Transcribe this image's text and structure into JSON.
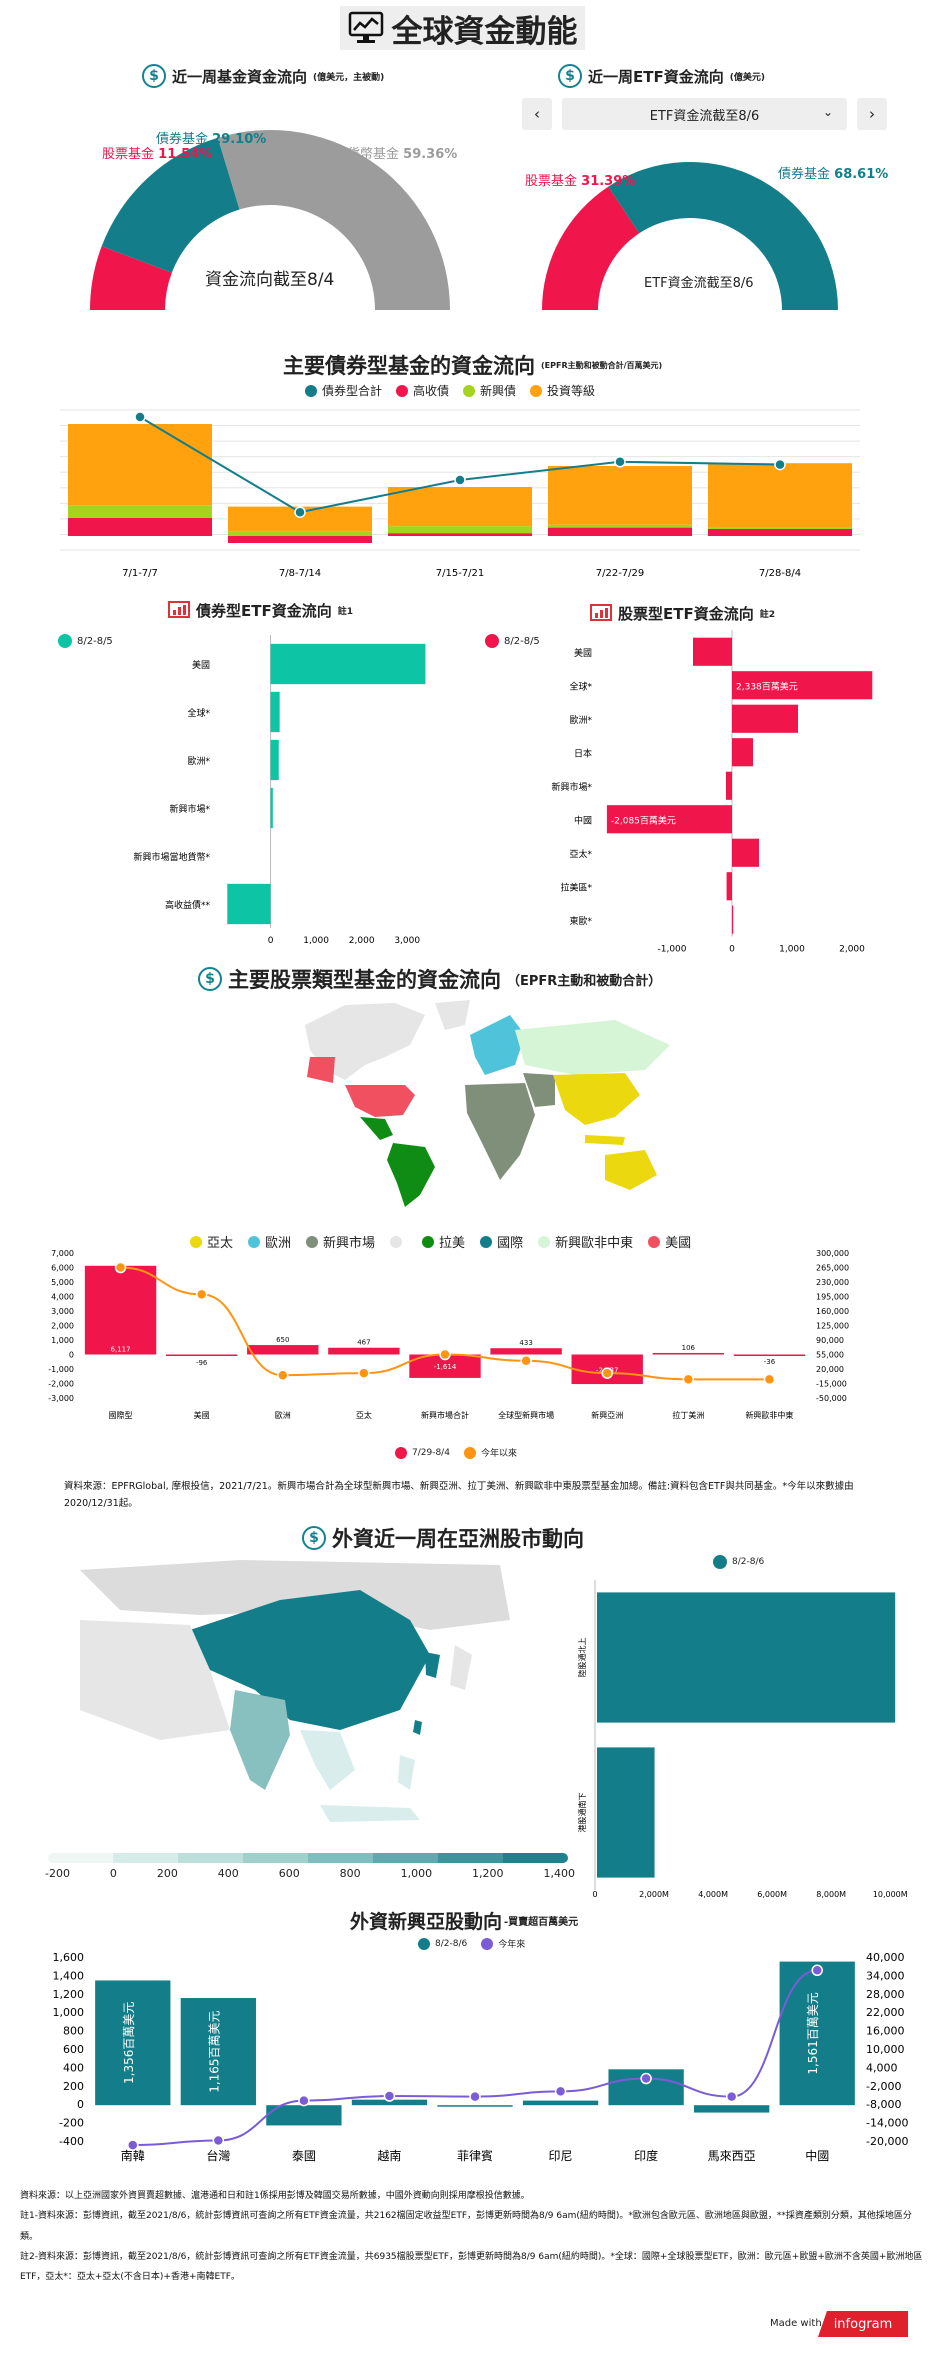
{
  "page_title": "全球資金動能",
  "gauge1": {
    "title": "近一周基金資金流向",
    "subtitle": "(億美元，主被動)",
    "center_label": "資金流向截至8/4",
    "slices": [
      {
        "label": "股票基金",
        "pct": "11.54%",
        "value": 11.54,
        "color": "#f0154a"
      },
      {
        "label": "債券基金",
        "pct": "29.10%",
        "value": 29.1,
        "color": "#137e8a"
      },
      {
        "label": "貨幣基金",
        "pct": "59.36%",
        "value": 59.36,
        "color": "#9c9c9c"
      }
    ]
  },
  "gauge2": {
    "title": "近一周ETF資金流向",
    "subtitle": "(億美元)",
    "dropdown_value": "ETF資金流截至8/6",
    "prev_icon": "chevron-left-icon",
    "next_icon": "chevron-right-icon",
    "center_label": "ETF資金流截至8/6",
    "slices": [
      {
        "label": "股票基金",
        "pct": "31.39%",
        "value": 31.39,
        "color": "#f0154a"
      },
      {
        "label": "債券基金",
        "pct": "68.61%",
        "value": 68.61,
        "color": "#137e8a"
      }
    ]
  },
  "bond_flow": {
    "title": "主要債券型基金的資金流向",
    "subtitle": "(EPFR主動和被動合計/百萬美元)",
    "legend": [
      {
        "label": "債券型合計",
        "color": "#137e8a"
      },
      {
        "label": "高收債",
        "color": "#f0154a"
      },
      {
        "label": "新興債",
        "color": "#a4d41e"
      },
      {
        "label": "投資等級",
        "color": "#ffa20e"
      }
    ],
    "chart_data": {
      "type": "bar",
      "categories": [
        "7/1-7/7",
        "7/8-7/14",
        "7/15-7/21",
        "7/22-7/29",
        "7/28-8/4"
      ],
      "series": [
        {
          "name": "高收債",
          "values": [
            13,
            -5,
            2,
            6,
            5
          ]
        },
        {
          "name": "新興債",
          "values": [
            9,
            3,
            5,
            2,
            1
          ]
        },
        {
          "name": "投資等級",
          "values": [
            58,
            18,
            28,
            42,
            46
          ]
        },
        {
          "name": "債券型合計",
          "values": [
            85,
            17,
            40,
            53,
            51
          ]
        }
      ],
      "ylim": [
        -10,
        90
      ]
    }
  },
  "bond_etf": {
    "title": "債券型ETF資金流向",
    "note_mark": "註1",
    "legend": "8/2-8/5",
    "color": "#0dc4a4",
    "chart_data": {
      "type": "bar",
      "categories": [
        "美國",
        "全球*",
        "歐洲*",
        "新興市場*",
        "新興市場當地貨幣*",
        "高收益債**"
      ],
      "values": [
        3400,
        200,
        180,
        50,
        0,
        -950
      ],
      "xlim": [
        -1000,
        3500
      ],
      "ticks": [
        "0",
        "1,000",
        "2,000",
        "3,000"
      ]
    }
  },
  "stock_etf": {
    "title": "股票型ETF資金流向",
    "note_mark": "註2",
    "legend": "8/2-8/5",
    "color": "#f0154a",
    "chart_data": {
      "type": "bar",
      "categories": [
        "美國",
        "全球*",
        "歐洲*",
        "日本",
        "新興市場*",
        "中國",
        "亞太*",
        "拉美區*",
        "東歐*"
      ],
      "values": [
        -650,
        2338,
        1100,
        350,
        -100,
        -2085,
        450,
        -90,
        20
      ],
      "labels": [
        "",
        "2,338百萬美元",
        "",
        "",
        "",
        "-2,085百萬美元",
        "",
        "",
        ""
      ],
      "xlim": [
        -2000,
        2500
      ],
      "ticks": [
        "-1,000",
        "0",
        "1,000",
        "2,000"
      ]
    }
  },
  "stock_funds": {
    "title": "主要股票類型基金的資金流向",
    "subtitle": "（EPFR主動和被動合計）",
    "map_legend": [
      {
        "label": "亞太",
        "color": "#ecd80e"
      },
      {
        "label": "歐洲",
        "color": "#4fc3d9"
      },
      {
        "label": "新興市場",
        "color": "#7f8f79"
      },
      {
        "label": "",
        "color": "#e6e6e6"
      },
      {
        "label": "拉美",
        "color": "#0f8c14"
      },
      {
        "label": "國際",
        "color": "#137e8a"
      },
      {
        "label": "新興歐非中東",
        "color": "#d6f5d6"
      },
      {
        "label": "美國",
        "color": "#f05060"
      }
    ],
    "chart_legend": [
      {
        "label": "7/29-8/4",
        "color": "#f0154a"
      },
      {
        "label": "今年以來",
        "color": "#ff9412"
      }
    ],
    "chart_data": {
      "type": "bar",
      "categories": [
        "國際型",
        "美國",
        "歐洲",
        "亞太",
        "新興市場合計",
        "全球型新興市場",
        "新興亞洲",
        "拉丁美洲",
        "新興歐非中東"
      ],
      "series": [
        {
          "name": "7/29-8/4",
          "values": [
            6117,
            -96,
            650,
            467,
            -1614,
            433,
            -2037,
            106,
            -36
          ]
        },
        {
          "name": "今年以來",
          "values": [
            265000,
            200000,
            5000,
            10000,
            55000,
            40000,
            10000,
            -5000,
            -5000
          ]
        }
      ],
      "labels": [
        "6,117",
        "-96",
        "650",
        "467",
        "-1,614",
        "433",
        "-2,037",
        "106",
        "-36"
      ],
      "y_left": [
        "7,000",
        "6,000",
        "5,000",
        "4,000",
        "3,000",
        "2,000",
        "1,000",
        "0",
        "-1,000",
        "-2,000",
        "-3,000"
      ],
      "y_right": [
        "300,000",
        "265,000",
        "230,000",
        "195,000",
        "160,000",
        "125,000",
        "90,000",
        "55,000",
        "20,000",
        "-15,000",
        "-50,000"
      ]
    },
    "source_note": "資料來源：EPFRGlobal, 摩根投信，2021/7/21。新興市場合計為全球型新興市場、新興亞洲、拉丁美洲、新興歐非中東股票型基金加總。備註:資料包含ETF與共同基金。*今年以來數據由2020/12/31起。"
  },
  "asia_flow": {
    "title": "外資近一周在亞洲股市動向",
    "legend": "8/2-8/6",
    "color": "#137e8a",
    "scale_ticks": [
      "-200",
      "0",
      "200",
      "400",
      "600",
      "800",
      "1,000",
      "1,200",
      "1,400"
    ],
    "chart_data": {
      "type": "bar",
      "categories": [
        "陸股通北上",
        "港股通南下"
      ],
      "values": [
        10100,
        1950
      ],
      "ticks": [
        "0",
        "2,000M",
        "4,000M",
        "6,000M",
        "8,000M",
        "10,000M"
      ],
      "xlim": [
        0,
        10500
      ]
    }
  },
  "em_asia": {
    "title": "外資新興亞股動向",
    "subtitle": "-買賣超百萬美元",
    "legend": [
      {
        "label": "8/2-8/6",
        "color": "#137e8a"
      },
      {
        "label": "今年來",
        "color": "#7a5cd6"
      }
    ],
    "chart_data": {
      "type": "bar",
      "categories": [
        "南韓",
        "台灣",
        "泰國",
        "越南",
        "菲律賓",
        "印尼",
        "印度",
        "馬來西亞",
        "中國"
      ],
      "series": [
        {
          "name": "8/2-8/6",
          "values": [
            1356,
            1165,
            -220,
            60,
            0,
            50,
            390,
            -80,
            1561
          ]
        },
        {
          "name": "今年來",
          "values": [
            -21000,
            -19500,
            -6500,
            -5000,
            -5200,
            -3500,
            700,
            -5200,
            36000
          ]
        }
      ],
      "bar_labels": [
        "1,356百萬美元",
        "1,165百萬美元",
        "",
        "",
        "",
        "",
        "",
        "",
        "1,561百萬美元"
      ],
      "y_left": [
        "1,600",
        "1,400",
        "1,200",
        "1,000",
        "800",
        "600",
        "400",
        "200",
        "0",
        "-200",
        "-400"
      ],
      "y_right": [
        "40,000",
        "34,000",
        "28,000",
        "22,000",
        "16,000",
        "10,000",
        "4,000",
        "-2,000",
        "-8,000",
        "-14,000",
        "-20,000"
      ]
    }
  },
  "footnotes": {
    "line1": "資料來源：以上亞洲國家外資買賣超數據、滬港通和日和註1係採用彭博及韓國交易所數據，中國外資動向則採用摩根投信數據。",
    "line2": "註1-資料來源：彭博資訊，截至2021/8/6，統計彭博資訊可查詢之所有ETF資金流量，共2162檔固定收益型ETF，彭博更新時間為8/9 6am(紐約時間)。*歐洲包含歐元區、歐洲地區與歐盟，**採資產類別分類，其他採地區分類。",
    "line3": "註2-資料來源：彭博資訊，截至2021/8/6，統計彭博資訊可查詢之所有ETF資金流量，共6935檔股票型ETF，彭博更新時間為8/9 6am(紐約時間)。*全球：國際+全球股票型ETF，歐洲：歐元區+歐盟+歐洲不含英國+歐洲地區ETF，亞太*：亞太+亞太(不含日本)+香港+南韓ETF。"
  },
  "made_with": "Made with",
  "brand": "infogram"
}
